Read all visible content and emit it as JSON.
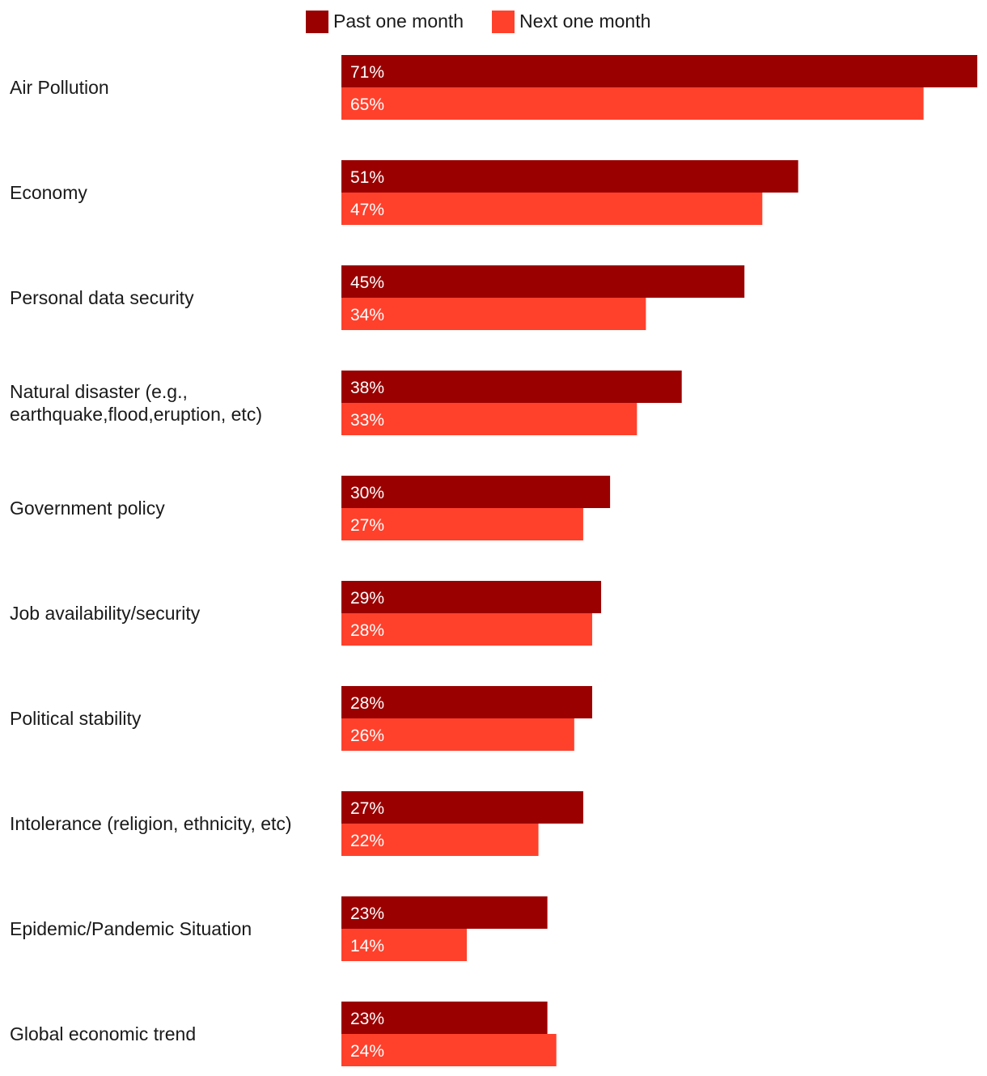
{
  "chart_data": {
    "type": "bar",
    "orientation": "horizontal",
    "title": "",
    "xlabel": "",
    "ylabel": "",
    "xlim": [
      0,
      71
    ],
    "grid": false,
    "legend_position": "top-center",
    "categories": [
      [
        "Air Pollution"
      ],
      [
        "Economy"
      ],
      [
        "Personal data security"
      ],
      [
        "Natural disaster (e.g.,",
        "earthquake,flood,eruption, etc)"
      ],
      [
        "Government policy"
      ],
      [
        "Job availability/security"
      ],
      [
        "Political stability"
      ],
      [
        "Intolerance (religion, ethnicity, etc)"
      ],
      [
        "Epidemic/Pandemic Situation"
      ],
      [
        "Global economic trend"
      ]
    ],
    "series": [
      {
        "name": "Past one month",
        "color": "#9a0000",
        "values": [
          71,
          51,
          45,
          38,
          30,
          29,
          28,
          27,
          23,
          23
        ],
        "labels": [
          "71%",
          "51%",
          "45%",
          "38%",
          "30%",
          "29%",
          "28%",
          "27%",
          "23%",
          "23%"
        ]
      },
      {
        "name": "Next one month",
        "color": "#ff412c",
        "values": [
          65,
          47,
          34,
          33,
          27,
          28,
          26,
          22,
          14,
          24
        ],
        "labels": [
          "65%",
          "47%",
          "34%",
          "33%",
          "27%",
          "28%",
          "26%",
          "22%",
          "14%",
          "24%"
        ]
      }
    ]
  }
}
